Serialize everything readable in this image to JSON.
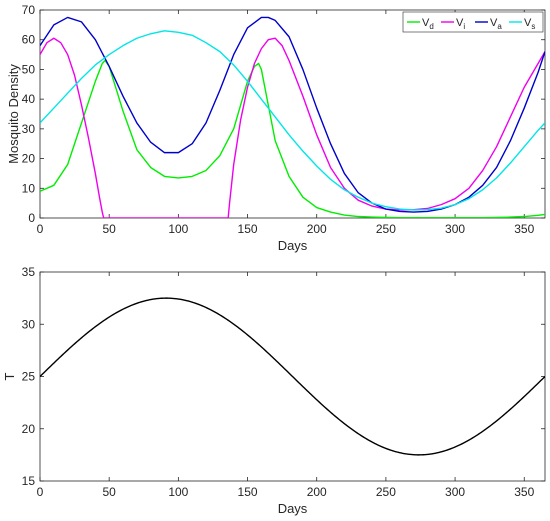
{
  "chart_data": [
    {
      "type": "line",
      "xlabel": "Days",
      "ylabel": "Mosquito Density",
      "xlim": [
        0,
        365
      ],
      "ylim": [
        0,
        70
      ],
      "xticks": [
        "0",
        "50",
        "100",
        "150",
        "200",
        "250",
        "300",
        "350"
      ],
      "yticks": [
        "0",
        "10",
        "20",
        "30",
        "40",
        "50",
        "60",
        "70"
      ],
      "grid": false,
      "legend_position": "top-right",
      "series": [
        {
          "name": "V",
          "subscript": "d",
          "color": "#00ee00",
          "x": [
            0,
            10,
            20,
            30,
            40,
            45,
            47,
            50,
            60,
            70,
            80,
            90,
            100,
            110,
            120,
            130,
            140,
            145,
            150,
            155,
            158,
            160,
            165,
            170,
            180,
            190,
            200,
            210,
            220,
            230,
            240,
            250,
            260,
            270,
            280,
            290,
            300,
            310,
            320,
            330,
            340,
            350,
            360,
            365
          ],
          "y": [
            9,
            11,
            18,
            32,
            46,
            52,
            53,
            51,
            36,
            23,
            17,
            14,
            13.5,
            14,
            16,
            21,
            30,
            38,
            46,
            51,
            52,
            50,
            38,
            26,
            14,
            7,
            3.5,
            2,
            1,
            0.5,
            0.3,
            0.2,
            0.1,
            0.1,
            0.1,
            0.1,
            0.1,
            0.1,
            0.1,
            0.2,
            0.3,
            0.5,
            0.9,
            1.2
          ]
        },
        {
          "name": "V",
          "subscript": "i",
          "color": "#ee00ee",
          "x": [
            0,
            5,
            10,
            15,
            20,
            25,
            30,
            35,
            40,
            43,
            45,
            46,
            60,
            80,
            100,
            120,
            136,
            137,
            140,
            145,
            150,
            155,
            160,
            165,
            170,
            175,
            180,
            190,
            200,
            210,
            220,
            230,
            240,
            250,
            260,
            270,
            280,
            290,
            300,
            310,
            320,
            330,
            340,
            350,
            360,
            365
          ],
          "y": [
            55,
            59,
            60.5,
            59,
            55,
            48,
            38,
            27,
            15,
            7,
            2,
            0,
            0,
            0,
            0,
            0,
            0,
            5,
            18,
            33,
            44,
            52,
            57,
            60,
            60.5,
            58,
            53,
            41,
            28,
            17,
            10,
            6,
            4,
            3,
            2.7,
            2.8,
            3.2,
            4.5,
            6.5,
            10,
            16,
            24,
            34,
            44,
            52,
            56
          ]
        },
        {
          "name": "V",
          "subscript": "a",
          "color": "#0000cc",
          "x": [
            0,
            10,
            20,
            30,
            40,
            50,
            60,
            70,
            80,
            90,
            100,
            110,
            120,
            130,
            140,
            150,
            160,
            165,
            170,
            180,
            190,
            200,
            210,
            220,
            230,
            240,
            250,
            260,
            270,
            280,
            290,
            300,
            310,
            320,
            330,
            340,
            350,
            360,
            365
          ],
          "y": [
            58,
            65,
            67.5,
            66,
            60,
            51,
            41,
            32,
            25.5,
            22,
            22,
            25,
            32,
            43,
            55,
            64,
            67.5,
            67.5,
            66.5,
            61,
            50,
            37,
            25,
            15,
            8.5,
            5,
            3,
            2.2,
            2,
            2.2,
            3,
            4.5,
            7,
            11,
            17,
            26,
            37,
            49,
            56
          ]
        },
        {
          "name": "V",
          "subscript": "s",
          "color": "#00e6e6",
          "x": [
            0,
            10,
            20,
            30,
            40,
            50,
            60,
            70,
            80,
            90,
            100,
            110,
            120,
            130,
            140,
            150,
            160,
            170,
            180,
            190,
            200,
            210,
            220,
            230,
            240,
            250,
            260,
            270,
            280,
            290,
            300,
            310,
            320,
            330,
            340,
            350,
            360,
            365
          ],
          "y": [
            32,
            37,
            42,
            47,
            51.5,
            55,
            58,
            60.5,
            62,
            63,
            62.5,
            61.5,
            59,
            56,
            51.5,
            46,
            40,
            34,
            28,
            22.5,
            17.5,
            13,
            9.5,
            7,
            5,
            3.8,
            3,
            2.7,
            2.8,
            3.3,
            4.5,
            6.5,
            9.5,
            13.5,
            18.5,
            24,
            29.5,
            32
          ]
        }
      ]
    },
    {
      "type": "line",
      "xlabel": "Days",
      "ylabel": "T",
      "xlim": [
        0,
        365
      ],
      "ylim": [
        15,
        35
      ],
      "xticks": [
        "0",
        "50",
        "100",
        "150",
        "200",
        "250",
        "300",
        "350"
      ],
      "yticks": [
        "15",
        "20",
        "25",
        "30",
        "35"
      ],
      "grid": false,
      "series": [
        {
          "color": "#000000",
          "function": "25 + 7.5*sin(2*pi*x/365)",
          "x_start": 0,
          "x_end": 365
        }
      ]
    }
  ]
}
